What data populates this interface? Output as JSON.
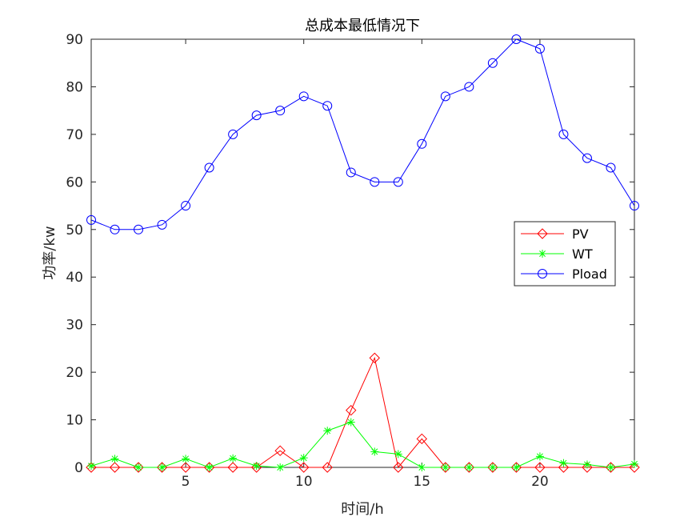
{
  "chart_data": {
    "type": "line",
    "title": "总成本最低情况下",
    "xlabel": "时间/h",
    "ylabel": "功率/kw",
    "xlim": [
      1,
      24
    ],
    "ylim": [
      0,
      90
    ],
    "xticks": [
      5,
      10,
      15,
      20
    ],
    "yticks": [
      0,
      10,
      20,
      30,
      40,
      50,
      60,
      70,
      80,
      90
    ],
    "grid": false,
    "legend_position": "right",
    "x": [
      1,
      2,
      3,
      4,
      5,
      6,
      7,
      8,
      9,
      10,
      11,
      12,
      13,
      14,
      15,
      16,
      17,
      18,
      19,
      20,
      21,
      22,
      23,
      24
    ],
    "series": [
      {
        "name": "PV",
        "color": "#ff0000",
        "marker": "diamond",
        "values": [
          0,
          0,
          0,
          0,
          0,
          0,
          0,
          0,
          3.5,
          0,
          0,
          12,
          23,
          0,
          6,
          0,
          0,
          0,
          0,
          0,
          0,
          0,
          0,
          0
        ]
      },
      {
        "name": "WT",
        "color": "#00ff00",
        "marker": "asterisk",
        "values": [
          0.3,
          1.8,
          0,
          0,
          1.8,
          0,
          1.9,
          0.3,
          0,
          2,
          7.7,
          9.5,
          3.3,
          2.8,
          0,
          0,
          0,
          0,
          0,
          2.3,
          0.9,
          0.6,
          0,
          0.7
        ]
      },
      {
        "name": "Pload",
        "color": "#0000ff",
        "marker": "circle",
        "values": [
          52,
          50,
          50,
          51,
          55,
          63,
          70,
          74,
          75,
          78,
          76,
          62,
          60,
          60,
          68,
          78,
          80,
          85,
          90,
          88,
          70,
          65,
          63,
          55
        ]
      }
    ]
  }
}
